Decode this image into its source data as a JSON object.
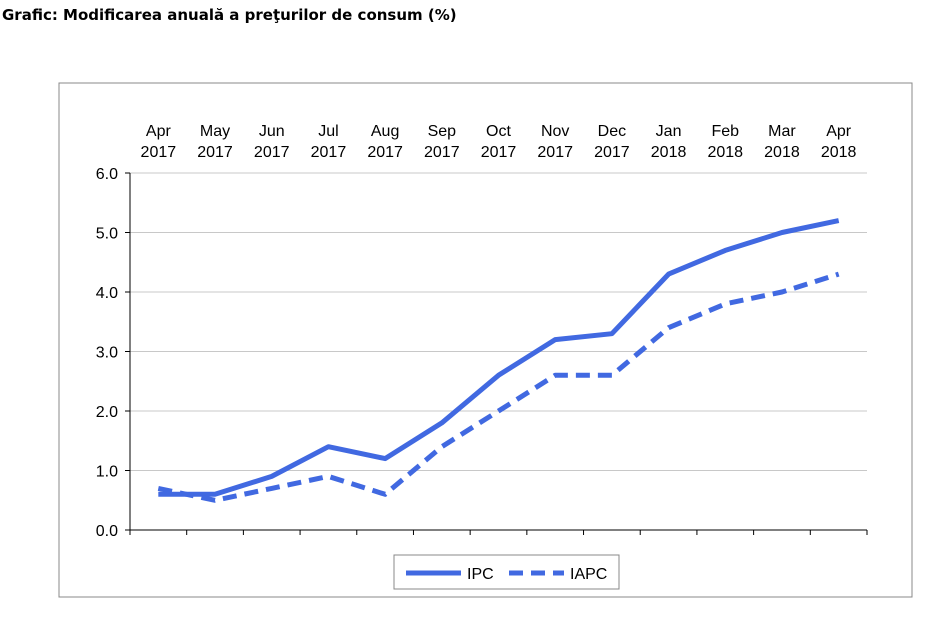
{
  "chart_data": {
    "type": "line",
    "title": "Grafic: Modificarea anuală a preţurilor de consum (%)",
    "categories": [
      [
        "Apr",
        "2017"
      ],
      [
        "May",
        "2017"
      ],
      [
        "Jun",
        "2017"
      ],
      [
        "Jul",
        "2017"
      ],
      [
        "Aug",
        "2017"
      ],
      [
        "Sep",
        "2017"
      ],
      [
        "Oct",
        "2017"
      ],
      [
        "Nov",
        "2017"
      ],
      [
        "Dec",
        "2017"
      ],
      [
        "Jan",
        "2018"
      ],
      [
        "Feb",
        "2018"
      ],
      [
        "Mar",
        "2018"
      ],
      [
        "Apr",
        "2018"
      ]
    ],
    "series": [
      {
        "name": "IPC",
        "style": "solid",
        "values": [
          0.6,
          0.6,
          0.9,
          1.4,
          1.2,
          1.8,
          2.6,
          3.2,
          3.3,
          4.3,
          4.7,
          5.0,
          5.2
        ]
      },
      {
        "name": "IAPC",
        "style": "dashed",
        "values": [
          0.7,
          0.5,
          0.7,
          0.9,
          0.6,
          1.4,
          2.0,
          2.6,
          2.6,
          3.4,
          3.8,
          4.0,
          4.3
        ]
      }
    ],
    "ylim": [
      0,
      6
    ],
    "yticks": [
      "0.0",
      "1.0",
      "2.0",
      "3.0",
      "4.0",
      "5.0",
      "6.0"
    ],
    "x_axis_position": "top",
    "grid": true,
    "legend": "bottom-center",
    "color": "#4169e1"
  }
}
